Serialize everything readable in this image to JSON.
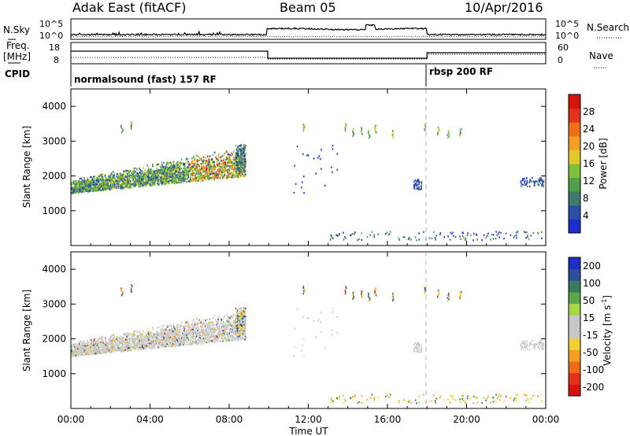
{
  "header": {
    "station": "Adak East (fitACF)",
    "beam": "Beam 05",
    "date": "10/Apr/2016"
  },
  "panels": {
    "noise": {
      "left_label": "N.Sky",
      "right_label": "N.Search",
      "left_ticks": [
        "10^5",
        "10^0"
      ],
      "right_ticks": [
        "10^5",
        "10^0"
      ]
    },
    "freq": {
      "left_label_1": "Freq.",
      "left_label_2": "[MHz]",
      "right_label": "Nave",
      "left_ticks": [
        "18",
        "8"
      ],
      "right_ticks": [
        "60",
        "0"
      ]
    },
    "cpid": {
      "label": "CPID",
      "modes": [
        {
          "name": "normalsound (fast) 157 RF",
          "start_hour": 0
        },
        {
          "name": "rbsp 200 RF",
          "start_hour": 18
        }
      ]
    }
  },
  "chart_data": [
    {
      "type": "heatmap",
      "name": "power",
      "ylabel": "Slant Range [km]",
      "xlabel": "",
      "ylim": [
        0,
        4500
      ],
      "yticks": [
        "1000",
        "2000",
        "3000",
        "4000"
      ],
      "xlim": [
        0,
        24
      ],
      "colorbar": {
        "label": "Power [dB]",
        "ticks": [
          "4",
          "8",
          "12",
          "16",
          "20",
          "24",
          "28"
        ],
        "colors": [
          "#1f2dcf",
          "#2c4fa6",
          "#3f7a6e",
          "#4f9e4a",
          "#7fc23a",
          "#e3c82a",
          "#f3a020",
          "#ef6e1a",
          "#e2341a",
          "#d9120f"
        ]
      }
    },
    {
      "type": "heatmap",
      "name": "velocity",
      "ylabel": "Slant Range [km]",
      "xlabel": "Time UT",
      "ylim": [
        0,
        4500
      ],
      "yticks": [
        "1000",
        "2000",
        "3000",
        "4000"
      ],
      "xlim": [
        0,
        24
      ],
      "xticks": [
        "00:00",
        "04:00",
        "08:00",
        "12:00",
        "16:00",
        "20:00",
        "00:00"
      ],
      "colorbar": {
        "label": "Velocity [m s",
        "label_sup": "-1",
        "label_end": "]",
        "ticks": [
          "200",
          "100",
          "50",
          "15",
          "-15",
          "-50",
          "-100",
          "-200"
        ],
        "colors": [
          "#1e2fc8",
          "#2d4f9d",
          "#3b7a5c",
          "#5aa84a",
          "#a6d845",
          "#c8c8c8",
          "#c8c8c8",
          "#f0d030",
          "#f5a020",
          "#ef6a18",
          "#e3301a",
          "#d9100e"
        ]
      }
    }
  ],
  "colors": {
    "mode_split": "#9a9a9a",
    "scatter_main": "#2a5fbf"
  }
}
